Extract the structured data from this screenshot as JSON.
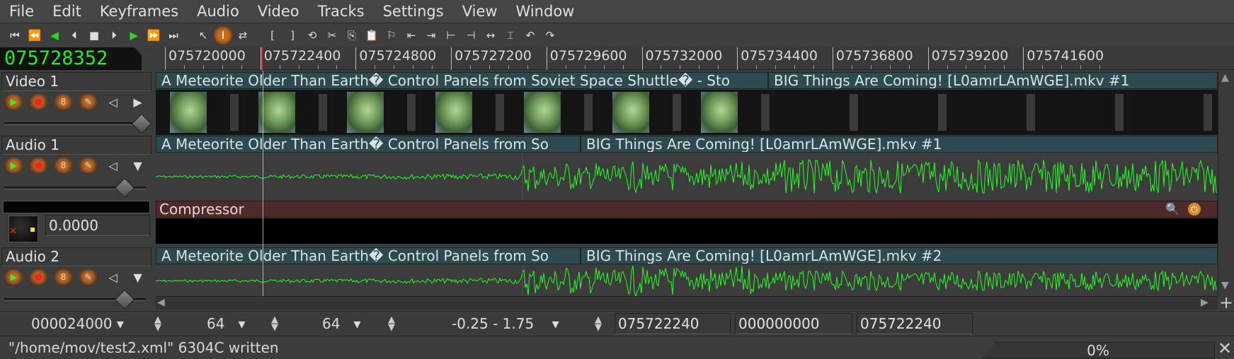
{
  "menu": [
    "File",
    "Edit",
    "Keyframes",
    "Audio",
    "Video",
    "Tracks",
    "Settings",
    "View",
    "Window"
  ],
  "toolbar": {
    "transport": [
      {
        "name": "rewind-to-start-icon",
        "glyph": "⏮",
        "green": false
      },
      {
        "name": "fast-reverse-icon",
        "glyph": "⏪",
        "green": true
      },
      {
        "name": "reverse-play-icon",
        "glyph": "◀",
        "green": true
      },
      {
        "name": "frame-back-icon",
        "glyph": "⏴",
        "green": false
      },
      {
        "name": "stop-icon",
        "glyph": "■",
        "green": false
      },
      {
        "name": "frame-forward-icon",
        "glyph": "⏵",
        "green": false
      },
      {
        "name": "play-icon",
        "glyph": "▶",
        "green": true
      },
      {
        "name": "fast-forward-icon",
        "glyph": "⏩",
        "green": true
      },
      {
        "name": "jump-to-end-icon",
        "glyph": "⏭",
        "green": false
      }
    ],
    "tools": [
      {
        "name": "arrow-tool-icon",
        "glyph": "↖",
        "selected": false
      },
      {
        "name": "ibeam-tool-icon",
        "glyph": "I",
        "selected": true
      },
      {
        "name": "drag-tool-icon",
        "glyph": "⇄",
        "selected": false
      }
    ],
    "edit_tools": [
      {
        "name": "in-point-icon",
        "glyph": "["
      },
      {
        "name": "out-point-icon",
        "glyph": "]"
      },
      {
        "name": "splice-icon",
        "glyph": "⟲"
      },
      {
        "name": "cut-icon",
        "glyph": "✂"
      },
      {
        "name": "copy-icon",
        "glyph": "⎘"
      },
      {
        "name": "paste-icon",
        "glyph": "📋"
      },
      {
        "name": "label-icon",
        "glyph": "⚐"
      },
      {
        "name": "prev-label-icon",
        "glyph": "⇤"
      },
      {
        "name": "next-label-icon",
        "glyph": "⇥"
      },
      {
        "name": "fit-selection-icon",
        "glyph": "⊢"
      },
      {
        "name": "fit-autos-icon",
        "glyph": "⊣"
      },
      {
        "name": "toggle-label-icon",
        "glyph": "↔"
      },
      {
        "name": "selection-icon",
        "glyph": "⌶"
      },
      {
        "name": "undo-icon",
        "glyph": "↶"
      },
      {
        "name": "redo-icon",
        "glyph": "↷"
      }
    ]
  },
  "clock": "075728352",
  "timebar": {
    "labels": [
      "075720000",
      "075722400",
      "075724800",
      "075727200",
      "075729600",
      "075732000",
      "075734400",
      "075736800",
      "075739200",
      "075741600"
    ]
  },
  "tracks": [
    {
      "title": "Video 1",
      "type": "video"
    },
    {
      "title": "Audio 1",
      "type": "audio"
    },
    {
      "title": "Audio 2",
      "type": "audio"
    }
  ],
  "edits": {
    "video1_a": "A Meteorite Older Than Earth� Control Panels from Soviet Space Shuttle� - Sto",
    "video1_b": "BIG Things Are Coming! [L0amrLAmWGE].mkv #1",
    "audio1_a": "A Meteorite Older Than Earth� Control Panels from So",
    "audio1_b": "BIG Things Are Coming! [L0amrLAmWGE].mkv #1",
    "audio2_a": "A Meteorite Older Than Earth� Control Panels from So",
    "audio2_b": "BIG Things Are Coming! [L0amrLAmWGE].mkv #2"
  },
  "plugin": {
    "name": "Compressor",
    "value": "0.0000"
  },
  "zoombar": {
    "sample_zoom": "000024000",
    "amp_zoom": "64",
    "track_zoom": "64",
    "auto_range": "-0.25 - 1.75",
    "sel_start": "075722240",
    "sel_length": "000000000",
    "sel_end": "075722240"
  },
  "status": {
    "message": "\"/home/mov/test2.xml\" 6304C written",
    "progress": "0%"
  },
  "colors": {
    "wave": "#22ff22",
    "edit_title": "#2c4a4f",
    "plugin": "#4f2a2a",
    "clock": "#22ee22"
  }
}
